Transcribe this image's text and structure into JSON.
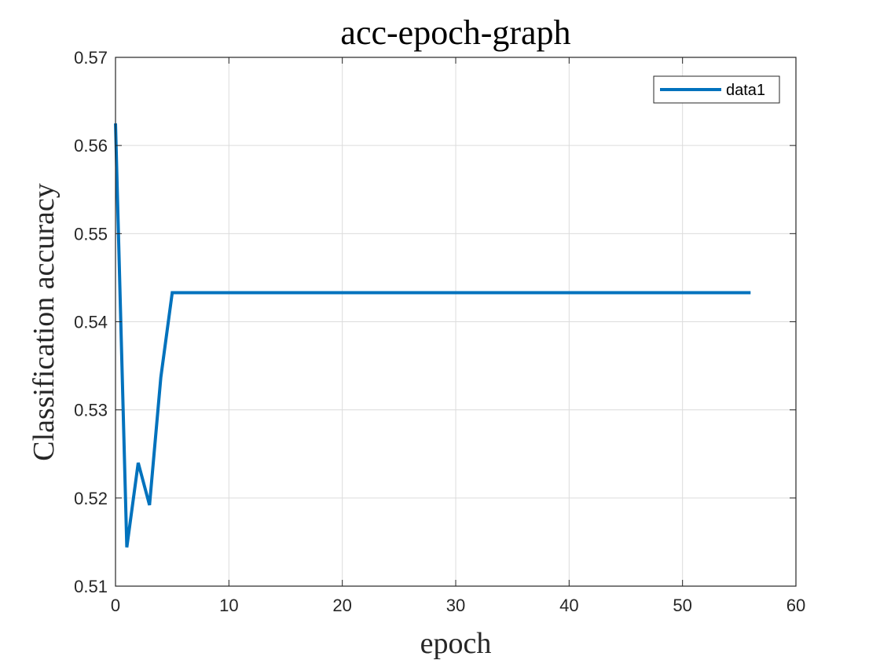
{
  "chart_data": {
    "type": "line",
    "title": "acc-epoch-graph",
    "xlabel": "epoch",
    "ylabel": "Classification accuracy",
    "xlim": [
      0,
      60
    ],
    "ylim": [
      0.51,
      0.57
    ],
    "xticks": [
      0,
      10,
      20,
      30,
      40,
      50,
      60
    ],
    "yticks": [
      0.51,
      0.52,
      0.53,
      0.54,
      0.55,
      0.56,
      0.57
    ],
    "xtick_labels": [
      "0",
      "10",
      "20",
      "30",
      "40",
      "50",
      "60"
    ],
    "ytick_labels": [
      "0.51",
      "0.52",
      "0.53",
      "0.54",
      "0.55",
      "0.56",
      "0.57"
    ],
    "grid": true,
    "legend_position": "top-right",
    "series": [
      {
        "name": "data1",
        "color": "#0072BD",
        "x": [
          0,
          1,
          2,
          3,
          4,
          5,
          6,
          7,
          8,
          9,
          10,
          11,
          12,
          13,
          14,
          15,
          16,
          17,
          18,
          19,
          20,
          21,
          22,
          23,
          24,
          25,
          26,
          27,
          28,
          29,
          30,
          31,
          32,
          33,
          34,
          35,
          36,
          37,
          38,
          39,
          40,
          41,
          42,
          43,
          44,
          45,
          46,
          47,
          48,
          49,
          50,
          51,
          52,
          53,
          54,
          55,
          56
        ],
        "y": [
          0.5625,
          0.5144,
          0.524,
          0.5192,
          0.5337,
          0.5433,
          0.5433,
          0.5433,
          0.5433,
          0.5433,
          0.5433,
          0.5433,
          0.5433,
          0.5433,
          0.5433,
          0.5433,
          0.5433,
          0.5433,
          0.5433,
          0.5433,
          0.5433,
          0.5433,
          0.5433,
          0.5433,
          0.5433,
          0.5433,
          0.5433,
          0.5433,
          0.5433,
          0.5433,
          0.5433,
          0.5433,
          0.5433,
          0.5433,
          0.5433,
          0.5433,
          0.5433,
          0.5433,
          0.5433,
          0.5433,
          0.5433,
          0.5433,
          0.5433,
          0.5433,
          0.5433,
          0.5433,
          0.5433,
          0.5433,
          0.5433,
          0.5433,
          0.5433,
          0.5433,
          0.5433,
          0.5433,
          0.5433,
          0.5433,
          0.5433
        ]
      }
    ]
  }
}
